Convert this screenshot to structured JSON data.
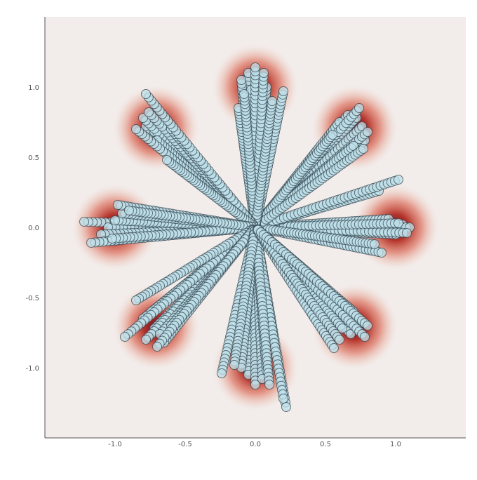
{
  "chart_data": {
    "type": "scatter",
    "title": "",
    "xlabel": "",
    "ylabel": "",
    "xlim": [
      -1.5,
      1.5
    ],
    "ylim": [
      -1.5,
      1.5
    ],
    "xticks": [
      "-1.0",
      "-0.5",
      "0.0",
      "0.5",
      "1.0"
    ],
    "yticks": [
      "1.0",
      "0.5",
      "0.0",
      "-0.5",
      "-1.0"
    ],
    "grid": false,
    "legend": "none",
    "background": "density heatmap of 8 Gaussian modes on a ring of radius 1",
    "modes": [
      {
        "x": 1.0,
        "y": 0.0
      },
      {
        "x": 0.707,
        "y": 0.707
      },
      {
        "x": 0.0,
        "y": 1.0
      },
      {
        "x": -0.707,
        "y": 0.707
      },
      {
        "x": -1.0,
        "y": 0.0
      },
      {
        "x": -0.707,
        "y": -0.707
      },
      {
        "x": 0.0,
        "y": -1.0
      },
      {
        "x": 0.707,
        "y": -0.707
      }
    ],
    "trajectory_ends": [
      {
        "x": 1.05,
        "y": 0.02
      },
      {
        "x": 1.1,
        "y": 0.0
      },
      {
        "x": 1.0,
        "y": -0.05
      },
      {
        "x": 0.95,
        "y": 0.06
      },
      {
        "x": 1.08,
        "y": -0.04
      },
      {
        "x": 1.02,
        "y": 0.03
      },
      {
        "x": 0.88,
        "y": 0.26
      },
      {
        "x": 1.02,
        "y": 0.34
      },
      {
        "x": 0.9,
        "y": -0.18
      },
      {
        "x": 0.85,
        "y": -0.12
      },
      {
        "x": 0.72,
        "y": 0.78
      },
      {
        "x": 0.76,
        "y": 0.72
      },
      {
        "x": 0.66,
        "y": 0.8
      },
      {
        "x": 0.78,
        "y": 0.62
      },
      {
        "x": 0.6,
        "y": 0.75
      },
      {
        "x": 0.74,
        "y": 0.85
      },
      {
        "x": 0.8,
        "y": 0.68
      },
      {
        "x": 0.7,
        "y": 0.58
      },
      {
        "x": 0.55,
        "y": 0.66
      },
      {
        "x": 0.77,
        "y": 0.56
      },
      {
        "x": -0.05,
        "y": 1.1
      },
      {
        "x": 0.02,
        "y": 1.08
      },
      {
        "x": 0.05,
        "y": 1.04
      },
      {
        "x": -0.1,
        "y": 1.05
      },
      {
        "x": -0.03,
        "y": 0.98
      },
      {
        "x": 0.08,
        "y": 1.0
      },
      {
        "x": -0.12,
        "y": 0.85
      },
      {
        "x": 0.2,
        "y": 0.97
      },
      {
        "x": 0.0,
        "y": 1.14
      },
      {
        "x": 0.06,
        "y": 1.1
      },
      {
        "x": -0.08,
        "y": 0.95
      },
      {
        "x": 0.12,
        "y": 0.9
      },
      {
        "x": -0.78,
        "y": 0.72
      },
      {
        "x": -0.72,
        "y": 0.68
      },
      {
        "x": -0.8,
        "y": 0.78
      },
      {
        "x": -0.65,
        "y": 0.74
      },
      {
        "x": -0.7,
        "y": 0.62
      },
      {
        "x": -0.85,
        "y": 0.7
      },
      {
        "x": -0.76,
        "y": 0.82
      },
      {
        "x": -0.6,
        "y": 0.7
      },
      {
        "x": -0.78,
        "y": 0.95
      },
      {
        "x": -0.63,
        "y": 0.48
      },
      {
        "x": -1.22,
        "y": 0.04
      },
      {
        "x": -1.05,
        "y": 0.0
      },
      {
        "x": -1.1,
        "y": -0.05
      },
      {
        "x": -1.0,
        "y": 0.05
      },
      {
        "x": -0.95,
        "y": 0.1
      },
      {
        "x": -1.08,
        "y": -0.1
      },
      {
        "x": -1.17,
        "y": -0.11
      },
      {
        "x": -0.98,
        "y": 0.16
      },
      {
        "x": -1.02,
        "y": -0.08
      },
      {
        "x": -0.9,
        "y": 0.12
      },
      {
        "x": -0.72,
        "y": -0.72
      },
      {
        "x": -0.78,
        "y": -0.8
      },
      {
        "x": -0.68,
        "y": -0.76
      },
      {
        "x": -0.8,
        "y": -0.65
      },
      {
        "x": -0.65,
        "y": -0.82
      },
      {
        "x": -0.74,
        "y": -0.6
      },
      {
        "x": -0.93,
        "y": -0.78
      },
      {
        "x": -0.85,
        "y": -0.52
      },
      {
        "x": -0.6,
        "y": -0.7
      },
      {
        "x": -0.7,
        "y": -0.85
      },
      {
        "x": -0.05,
        "y": -1.05
      },
      {
        "x": 0.0,
        "y": -1.12
      },
      {
        "x": 0.05,
        "y": -1.08
      },
      {
        "x": -0.1,
        "y": -1.0
      },
      {
        "x": 0.08,
        "y": -1.02
      },
      {
        "x": -0.24,
        "y": -1.04
      },
      {
        "x": 0.22,
        "y": -1.28
      },
      {
        "x": 0.2,
        "y": -1.22
      },
      {
        "x": 0.1,
        "y": -1.12
      },
      {
        "x": -0.15,
        "y": -0.98
      },
      {
        "x": 0.72,
        "y": -0.72
      },
      {
        "x": 0.68,
        "y": -0.76
      },
      {
        "x": 0.75,
        "y": -0.68
      },
      {
        "x": 0.62,
        "y": -0.72
      },
      {
        "x": 0.65,
        "y": -0.62
      },
      {
        "x": 0.78,
        "y": -0.78
      },
      {
        "x": 0.56,
        "y": -0.86
      },
      {
        "x": 0.7,
        "y": -0.6
      },
      {
        "x": 0.6,
        "y": -0.8
      },
      {
        "x": 0.8,
        "y": -0.7
      }
    ],
    "colors": {
      "point_fill": "#bfe0ea",
      "point_stroke": "#2e3f48",
      "heat_low": "#f2ecea",
      "heat_mid": "#d9604a",
      "heat_high": "#7a0c1e",
      "axis": "#555555"
    }
  }
}
